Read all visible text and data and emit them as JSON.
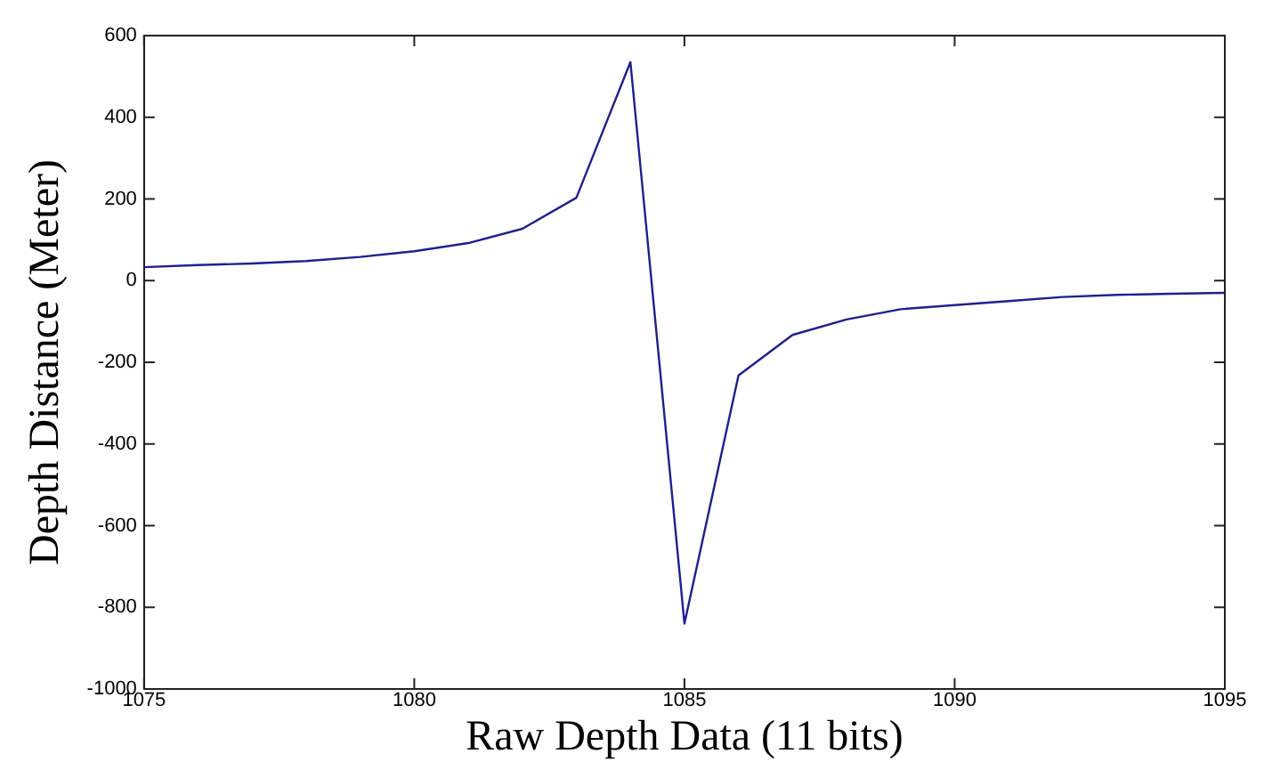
{
  "chart_data": {
    "type": "line",
    "xlabel": "Raw Depth Data (11 bits)",
    "ylabel": "Depth Distance (Meter)",
    "x": [
      1075,
      1076,
      1077,
      1078,
      1079,
      1080,
      1081,
      1082,
      1083,
      1084,
      1085,
      1086,
      1087,
      1088,
      1089,
      1090,
      1091,
      1092,
      1093,
      1094,
      1095
    ],
    "series": [
      {
        "color": "#1f1f8f",
        "values": [
          33,
          38,
          42,
          48,
          58,
          72,
          92,
          127,
          203,
          535,
          -840,
          -232,
          -133,
          -95,
          -70,
          -60,
          -50,
          -40,
          -35,
          -32,
          -30
        ]
      }
    ],
    "xlim": [
      1075,
      1095
    ],
    "xticks": [
      1075,
      1080,
      1085,
      1090,
      1095
    ],
    "ylim": [
      -1000,
      600
    ],
    "yticks": [
      -1000,
      -800,
      -600,
      -400,
      -200,
      0,
      200,
      400,
      600
    ],
    "grid": false,
    "legend": false,
    "marker": "none",
    "line_style": "solid"
  }
}
